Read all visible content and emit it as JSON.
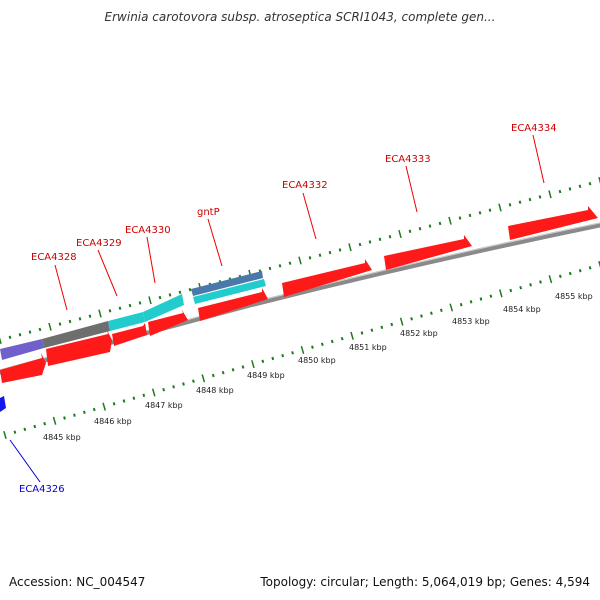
{
  "title": "Erwinia carotovora subsp. atroseptica SCRI1043, complete gen...",
  "footer": {
    "accession": "Accession: NC_004547",
    "summary": "Topology: circular; Length: 5,064,019 bp; Genes: 4,594"
  },
  "colors": {
    "backbone": "#8a8a8a",
    "tick": "#1f7a1f",
    "red_gene": "#ff1a1a",
    "cyan_gene": "#22cccc",
    "grey_gene": "#6e6e6e",
    "purple_gene": "#7060cc",
    "steelblue_gene": "#4a78aa",
    "blue_gene": "#1515ee",
    "red_label": "#cc0000",
    "blue_label": "#0000cc"
  },
  "gene_labels": [
    {
      "name": "ECA4326",
      "color": "blue"
    },
    {
      "name": "ECA4328",
      "color": "red"
    },
    {
      "name": "ECA4329",
      "color": "red"
    },
    {
      "name": "ECA4330",
      "color": "red"
    },
    {
      "name": "gntP",
      "color": "red"
    },
    {
      "name": "ECA4332",
      "color": "red"
    },
    {
      "name": "ECA4333",
      "color": "red"
    },
    {
      "name": "ECA4334",
      "color": "red"
    }
  ],
  "kbp_labels": [
    "4845 kbp",
    "4846 kbp",
    "4847 kbp",
    "4848 kbp",
    "4849 kbp",
    "4850 kbp",
    "4851 kbp",
    "4852 kbp",
    "4853 kbp",
    "4854 kbp",
    "4855 kbp"
  ]
}
